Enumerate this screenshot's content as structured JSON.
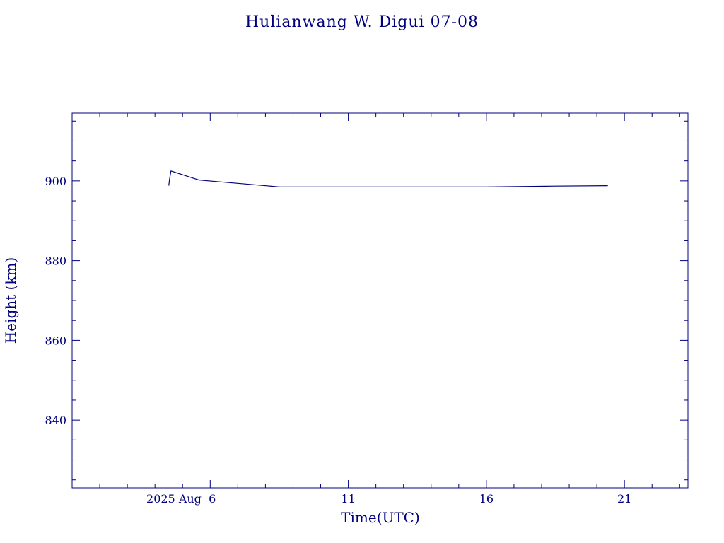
{
  "chart_data": {
    "type": "line",
    "title": "Hulianwang W. Digui 07-08",
    "xlabel": "Time(UTC)",
    "ylabel": "Height (km)",
    "x_axis": {
      "unit": "days of August 2025",
      "range": [
        1,
        23.3
      ],
      "major_ticks": [
        6,
        11,
        16,
        21
      ],
      "tick_labels": [
        "2025 Aug  6",
        "11",
        "16",
        "21"
      ]
    },
    "y_axis": {
      "range": [
        823,
        917
      ],
      "major_ticks": [
        840,
        860,
        880,
        900
      ],
      "tick_labels": [
        "840",
        "860",
        "880",
        "900"
      ]
    },
    "grid": false,
    "series": [
      {
        "x": [
          4.5,
          4.53,
          4.58,
          5.6,
          8.5,
          16.0,
          18.5,
          20.4
        ],
        "y": [
          898.8,
          900.5,
          902.5,
          900.2,
          898.5,
          898.5,
          898.7,
          898.8
        ]
      }
    ],
    "colors": {
      "axis": "#00007f",
      "line": "#00007f",
      "background": "#ffffff"
    }
  }
}
